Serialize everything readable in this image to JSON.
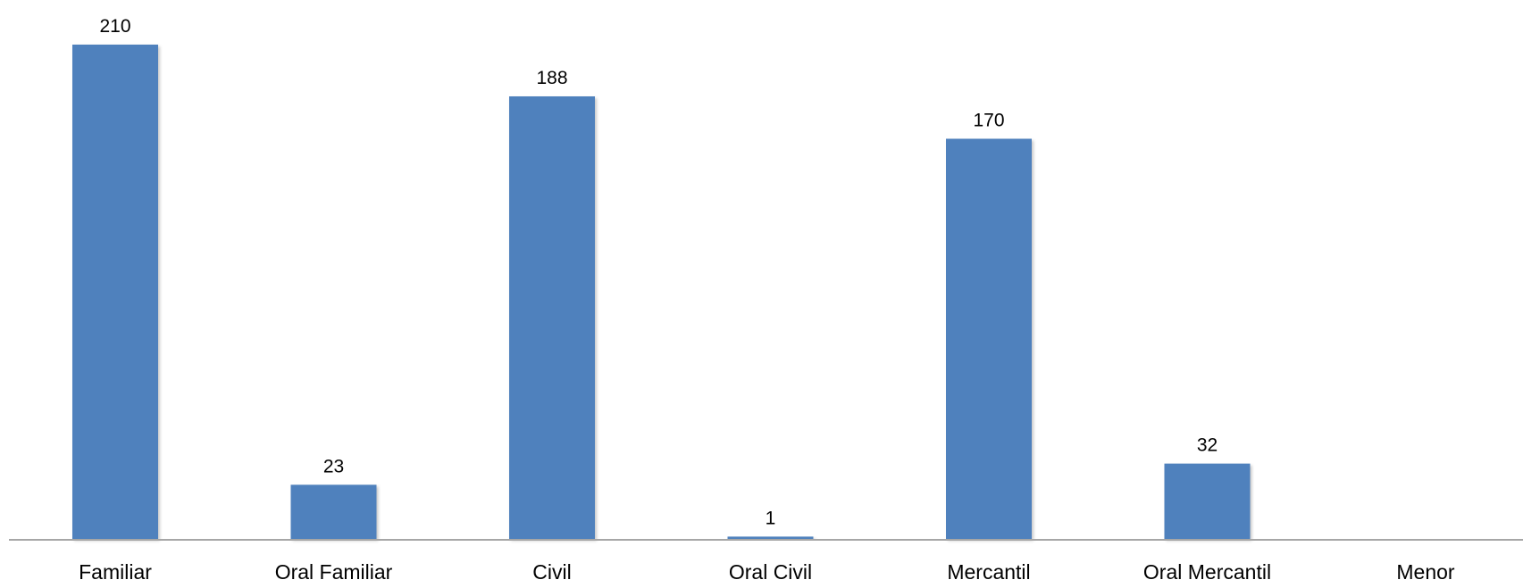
{
  "chart_data": {
    "type": "bar",
    "categories": [
      "Familiar",
      "Oral Familiar",
      "Civil",
      "Oral Civil",
      "Mercantil",
      "Oral Mercantil",
      "Menor"
    ],
    "series": [
      {
        "values": [
          210,
          23,
          188,
          1,
          170,
          32,
          null
        ]
      }
    ],
    "data_labels": [
      "210",
      "23",
      "188",
      "1",
      "170",
      "32",
      ""
    ],
    "title": "",
    "xlabel": "",
    "ylabel": "",
    "ylim": [
      0,
      210
    ],
    "grid": false,
    "legend": "none",
    "colors": {
      "bar": "#4f81bd",
      "axis": "#a6a6a6",
      "text": "#000000"
    }
  }
}
